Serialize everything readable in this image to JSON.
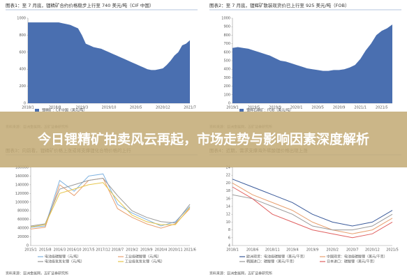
{
  "headline": "今日锂精矿拍卖风云再起，市场走势与影响因素深度解析",
  "chart_data": [
    {
      "type": "area",
      "title": "图表1：至 7 月底，锂精矿合约价格稳步上行至 740 美元/吨（CIF 中国）",
      "categories": [
        "2018/1",
        null,
        null,
        null,
        null,
        null,
        null,
        "2018/8",
        null,
        null,
        null,
        null,
        null,
        null,
        "2019/3",
        null,
        null,
        null,
        null,
        null,
        null,
        "2019/10",
        null,
        null,
        null,
        null,
        null,
        null,
        "2020/5",
        null,
        null,
        null,
        null,
        null,
        null,
        "2020/12",
        null,
        null,
        null,
        null,
        null,
        null,
        "2021/7"
      ],
      "series": [
        {
          "name": "锂精矿：CIF中国（美元/吨）",
          "color": "#4a6fb0",
          "values": [
            950,
            950,
            950,
            950,
            950,
            950,
            950,
            950,
            950,
            940,
            930,
            920,
            900,
            880,
            800,
            700,
            680,
            660,
            650,
            640,
            620,
            600,
            580,
            560,
            540,
            520,
            500,
            480,
            460,
            440,
            420,
            400,
            390,
            390,
            400,
            410,
            450,
            500,
            560,
            600,
            680,
            700,
            740
          ]
        }
      ],
      "ylim": [
        0,
        1000
      ],
      "yticks": [
        0,
        200,
        400,
        600,
        800,
        1000
      ],
      "source": "资料来源：亚洲金属网，五矿证券研究所"
    },
    {
      "type": "area",
      "title": "图表2：至 7 月底，锂辉矿散装现货价已上行至 925 美元/吨（FOB）",
      "categories": [
        "2019/1",
        null,
        null,
        null,
        "2019/5",
        null,
        null,
        null,
        "2019/9",
        null,
        null,
        null,
        "2020/1",
        null,
        null,
        null,
        "2020/5",
        null,
        null,
        null,
        "2020/9",
        null,
        null,
        null,
        "2021/1",
        null,
        null,
        null,
        "2021/5",
        null,
        null
      ],
      "series": [
        {
          "name": "锂辉石精矿：FOB（美元/吨）",
          "color": "#4a6fb0",
          "values": [
            650,
            660,
            650,
            640,
            620,
            600,
            580,
            560,
            530,
            500,
            490,
            470,
            450,
            430,
            410,
            400,
            390,
            380,
            380,
            390,
            390,
            400,
            420,
            450,
            520,
            620,
            700,
            800,
            850,
            880,
            925
          ]
        }
      ],
      "ylim": [
        0,
        1000
      ],
      "yticks": [
        0,
        100,
        200,
        300,
        400,
        500,
        600,
        700,
        800,
        900,
        1000
      ],
      "source": "资料来源：亚洲金属网，五矿证券研究所"
    },
    {
      "type": "line",
      "title": "图表3：向前看，锂精矿价格上涨或将支撑锂化合物价格的上行",
      "categories": [
        "2015/1",
        "2015/8",
        "2016/3",
        "2016/10",
        "2017/5",
        "2017/12",
        "2018/7",
        "2019/2",
        "2019/9",
        "2020/4",
        "2020/11",
        "2021/6"
      ],
      "series": [
        {
          "name": "电池级碳酸锂（元/吨）",
          "color": "#7fb2e0",
          "values": [
            42000,
            45000,
            150000,
            125000,
            160000,
            165000,
            95000,
            75000,
            60000,
            45000,
            55000,
            90000
          ]
        },
        {
          "name": "工业级碳酸锂（元/吨）",
          "color": "#e8a070",
          "values": [
            38000,
            42000,
            140000,
            115000,
            150000,
            155000,
            85000,
            65000,
            50000,
            40000,
            50000,
            85000
          ]
        },
        {
          "name": "电池级氢氧化锂（元/吨）",
          "color": "#9a9a9a",
          "values": [
            45000,
            50000,
            130000,
            140000,
            150000,
            155000,
            115000,
            80000,
            65000,
            55000,
            52000,
            95000
          ]
        },
        {
          "name": "工业级氢氧化锂（元/吨）",
          "color": "#e6c54a",
          "values": [
            43000,
            48000,
            120000,
            130000,
            140000,
            145000,
            105000,
            70000,
            55000,
            48000,
            48000,
            88000
          ]
        }
      ],
      "ylim": [
        0,
        180000
      ],
      "yticks": [
        0,
        20000,
        40000,
        60000,
        80000,
        100000,
        120000,
        140000,
        160000,
        180000
      ],
      "source": "资料来源：亚洲金属网，五矿证券研究所"
    },
    {
      "type": "line",
      "title": "图表4：近期，需求支撑海外碳酸锂价格出现上涨",
      "categories": [
        "2018/1",
        "2018/6",
        "2018/11",
        "2019/4",
        "2019/9",
        "2020/2",
        "2020/7",
        "2020/12",
        "2021/5"
      ],
      "series": [
        {
          "name": "欧洲现货：电池级碳酸锂（美元/千克）",
          "color": "#3a5a9a",
          "values": [
            21,
            19,
            17,
            15,
            12,
            10,
            9,
            10,
            13
          ]
        },
        {
          "name": "中国现货：电池级碳酸锂（美元/千克）",
          "color": "#e8a070",
          "values": [
            20,
            17,
            15,
            13,
            10,
            8,
            7,
            8,
            11
          ]
        },
        {
          "name": "韩国进口：碳酸锂（美元/千克）",
          "color": "#9a9a9a",
          "values": [
            17,
            16,
            14,
            12,
            9,
            8,
            8,
            9,
            12
          ]
        },
        {
          "name": "日本进口：碳酸锂（美元/千克）",
          "color": "#e06060",
          "values": [
            19,
            16,
            12,
            10,
            8,
            7,
            6,
            7,
            10
          ]
        }
      ],
      "ylim": [
        4,
        24
      ],
      "yticks": [
        4,
        6,
        8,
        10,
        12,
        14,
        16,
        18,
        20,
        22,
        24
      ],
      "source": "资料来源：亚洲金属网，五矿证券研究所"
    }
  ]
}
